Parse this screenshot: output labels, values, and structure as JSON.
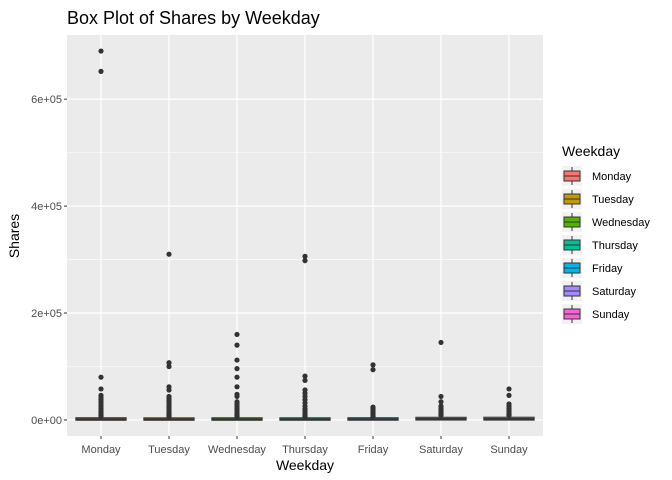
{
  "chart_data": {
    "type": "box",
    "title": "Box Plot of Shares by Weekday",
    "xlabel": "Weekday",
    "ylabel": "Shares",
    "ylim": [
      -30000,
      720000
    ],
    "y_ticks": [
      0,
      200000,
      400000,
      600000
    ],
    "y_tick_labels": [
      "0e+00",
      "2e+05",
      "4e+05",
      "6e+05"
    ],
    "grid": true,
    "legend_position": "right",
    "legend_title": "Weekday",
    "categories": [
      "Monday",
      "Tuesday",
      "Wednesday",
      "Thursday",
      "Friday",
      "Saturday",
      "Sunday"
    ],
    "colors": [
      "#F8766D",
      "#C49A00",
      "#53B400",
      "#00C094",
      "#00B6EB",
      "#A58AFF",
      "#FB61D7"
    ],
    "boxes": [
      {
        "name": "Monday",
        "min": 200,
        "q1": 900,
        "median": 1400,
        "q3": 2700,
        "max": 5400,
        "outliers": [
          690000,
          652000,
          80000,
          58000,
          46000,
          42000,
          38000,
          34000,
          30000,
          26000,
          22000,
          18000,
          15000,
          12000,
          9000,
          7000
        ]
      },
      {
        "name": "Tuesday",
        "min": 100,
        "q1": 900,
        "median": 1300,
        "q3": 2500,
        "max": 4900,
        "outliers": [
          310000,
          107000,
          100000,
          62000,
          56000,
          44000,
          40000,
          36000,
          32000,
          28000,
          24000,
          20000,
          16000,
          13000,
          10000,
          8000,
          6000
        ]
      },
      {
        "name": "Wednesday",
        "min": 100,
        "q1": 880,
        "median": 1300,
        "q3": 2600,
        "max": 5100,
        "outliers": [
          160000,
          140000,
          112000,
          96000,
          80000,
          62000,
          48000,
          44000,
          34000,
          30000,
          26000,
          22000,
          18000,
          14000,
          11000,
          8000,
          6000
        ]
      },
      {
        "name": "Thursday",
        "min": 100,
        "q1": 900,
        "median": 1300,
        "q3": 2600,
        "max": 5200,
        "outliers": [
          306000,
          298000,
          82000,
          74000,
          56000,
          50000,
          44000,
          38000,
          32000,
          26000,
          21000,
          17000,
          13000,
          10000,
          7500,
          6000
        ]
      },
      {
        "name": "Friday",
        "min": 100,
        "q1": 970,
        "median": 1500,
        "q3": 2700,
        "max": 5300,
        "outliers": [
          103000,
          94000,
          24000,
          21000,
          18000,
          15000,
          12000,
          9500,
          7500,
          6000
        ]
      },
      {
        "name": "Saturday",
        "min": 100,
        "q1": 1300,
        "median": 2000,
        "q3": 3600,
        "max": 7000,
        "outliers": [
          145000,
          44000,
          34000,
          26000,
          22000,
          18000,
          15000,
          12000,
          9500,
          8000
        ]
      },
      {
        "name": "Sunday",
        "min": 100,
        "q1": 1200,
        "median": 1900,
        "q3": 3700,
        "max": 7400,
        "outliers": [
          58000,
          46000,
          30000,
          26000,
          22000,
          18000,
          15000,
          12000,
          10000,
          8000
        ]
      }
    ]
  }
}
